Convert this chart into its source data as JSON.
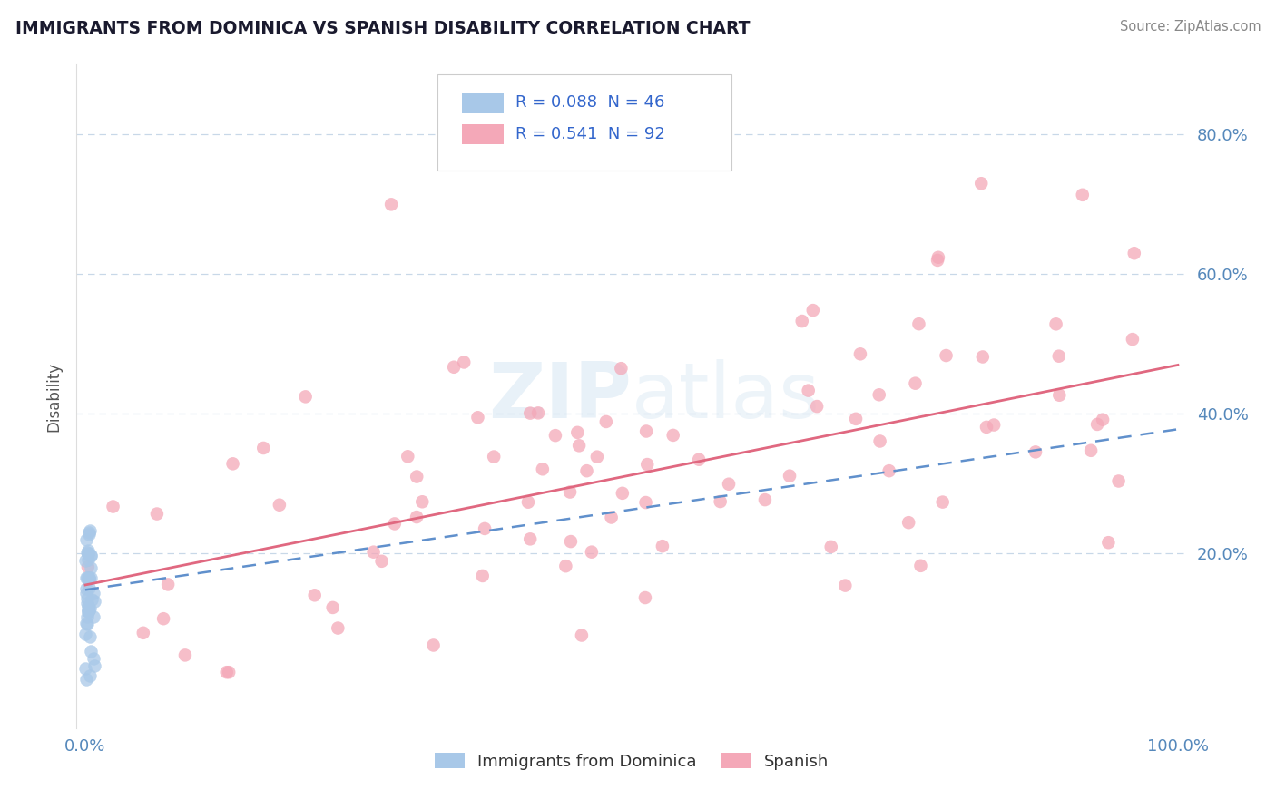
{
  "title": "IMMIGRANTS FROM DOMINICA VS SPANISH DISABILITY CORRELATION CHART",
  "source": "Source: ZipAtlas.com",
  "ylabel": "Disability",
  "right_ytick_vals": [
    0.2,
    0.4,
    0.6,
    0.8
  ],
  "right_ytick_labels": [
    "20.0%",
    "40.0%",
    "60.0%",
    "80.0%"
  ],
  "xlim": [
    -0.008,
    1.008
  ],
  "ylim": [
    -0.05,
    0.9
  ],
  "blue_R": 0.088,
  "blue_N": 46,
  "pink_R": 0.541,
  "pink_N": 92,
  "blue_color": "#a8c8e8",
  "pink_color": "#f4a8b8",
  "blue_line_color": "#6090cc",
  "pink_line_color": "#e06880",
  "background_color": "#ffffff",
  "grid_color": "#c8d8e8",
  "legend_label_blue": "Immigrants from Dominica",
  "legend_label_pink": "Spanish",
  "title_color": "#1a1a2e",
  "source_color": "#888888",
  "axis_color": "#5588bb",
  "ylabel_color": "#555555",
  "blue_seed": 42,
  "pink_seed": 7,
  "blue_line_intercept": 0.145,
  "blue_line_slope": 0.3,
  "pink_line_intercept": 0.155,
  "pink_line_slope": 0.315
}
